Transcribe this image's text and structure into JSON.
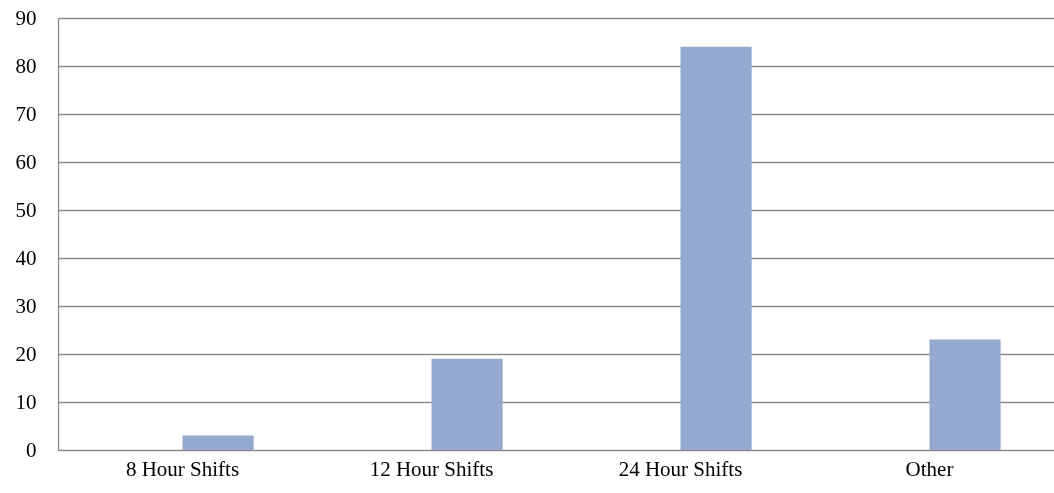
{
  "chart_data": {
    "type": "bar",
    "categories": [
      "8 Hour Shifts",
      "12 Hour Shifts",
      "24 Hour Shifts",
      "Other"
    ],
    "values": [
      3,
      19,
      84,
      23
    ],
    "color": "#95a9d0",
    "ylim": [
      0,
      90
    ],
    "yticks": [
      0,
      10,
      20,
      30,
      40,
      50,
      60,
      70,
      80,
      90
    ],
    "grid": "y"
  }
}
